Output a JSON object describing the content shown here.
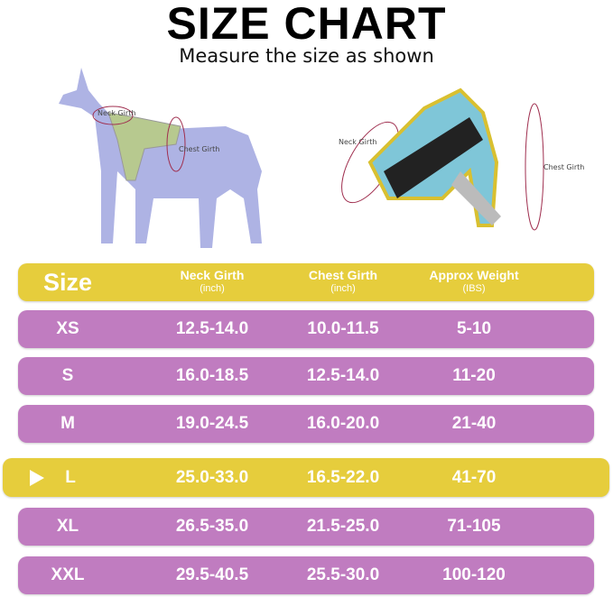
{
  "title": "SIZE CHART",
  "subtitle": "Measure the size as shown",
  "diagram": {
    "neck_label": "Neck Girth",
    "chest_label": "Chest Girth"
  },
  "colors": {
    "header": "#e6cd3c",
    "row": "#c07cc0",
    "highlight": "#e6cd3c"
  },
  "table": {
    "headers": [
      {
        "label": "Size",
        "unit": ""
      },
      {
        "label": "Neck Girth",
        "unit": "(inch)"
      },
      {
        "label": "Chest Girth",
        "unit": "(inch)"
      },
      {
        "label": "Approx Weight",
        "unit": "(IBS)"
      }
    ],
    "rows": [
      {
        "size": "XS",
        "neck": "12.5-14.0",
        "chest": "10.0-11.5",
        "weight": "5-10"
      },
      {
        "size": "S",
        "neck": "16.0-18.5",
        "chest": "12.5-14.0",
        "weight": "11-20"
      },
      {
        "size": "M",
        "neck": "19.0-24.5",
        "chest": "16.0-20.0",
        "weight": "21-40"
      },
      {
        "size": "L",
        "neck": "25.0-33.0",
        "chest": "16.5-22.0",
        "weight": "41-70",
        "highlighted": true
      },
      {
        "size": "XL",
        "neck": "26.5-35.0",
        "chest": "21.5-25.0",
        "weight": "71-105"
      },
      {
        "size": "XXL",
        "neck": "29.5-40.5",
        "chest": "25.5-30.0",
        "weight": "100-120"
      }
    ]
  }
}
